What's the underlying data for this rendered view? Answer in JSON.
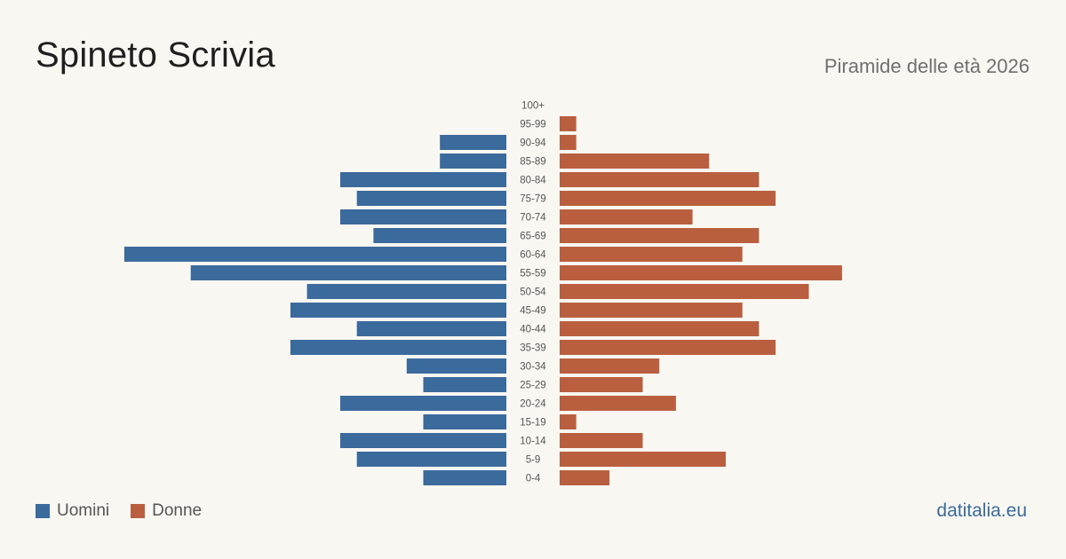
{
  "title": "Spineto Scrivia",
  "subtitle": "Piramide delle età 2026",
  "brand": "datitalia.eu",
  "colors": {
    "men": "#3b6a9c",
    "women": "#b95f3f",
    "background": "#f9f7f2"
  },
  "legend": {
    "men_label": "Uomini",
    "women_label": "Donne"
  },
  "chart_data": {
    "type": "bar",
    "orientation": "horizontal-pyramid",
    "categories": [
      "100+",
      "95-99",
      "90-94",
      "85-89",
      "80-84",
      "75-79",
      "70-74",
      "65-69",
      "60-64",
      "55-59",
      "50-54",
      "45-49",
      "40-44",
      "35-39",
      "30-34",
      "25-29",
      "20-24",
      "15-19",
      "10-14",
      "5-9",
      "0-4"
    ],
    "series": [
      {
        "name": "Uomini",
        "values": [
          0,
          0,
          4,
          4,
          10,
          9,
          10,
          8,
          23,
          19,
          12,
          13,
          9,
          13,
          6,
          5,
          10,
          5,
          10,
          9,
          5
        ]
      },
      {
        "name": "Donne",
        "values": [
          0,
          1,
          1,
          9,
          12,
          13,
          8,
          12,
          11,
          17,
          15,
          11,
          12,
          13,
          6,
          5,
          7,
          1,
          5,
          10,
          3
        ]
      }
    ],
    "legend_position": "bottom-left",
    "grid": false
  }
}
